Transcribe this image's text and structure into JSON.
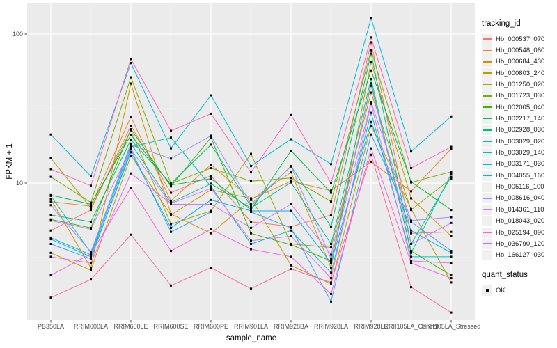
{
  "figure": {
    "background": "#FFFFFF",
    "panel_bg": "#EBEBEB",
    "grid_major_color": "#FFFFFF",
    "grid_minor_color": "#F5F5F5",
    "tick_mark_color": "#333333",
    "tick_label_color": "#4D4D4D",
    "point_color": "#000000"
  },
  "axes": {
    "x_title": "sample_name",
    "y_title": "FPKM + 1",
    "y_ticks": [
      {
        "label": "100",
        "value": 100
      },
      {
        "label": "10",
        "value": 10
      }
    ]
  },
  "legend": {
    "tracking_title": "tracking_id",
    "quant_title": "quant_status",
    "quant_items": [
      {
        "label": "OK",
        "marker": "black-square"
      }
    ]
  },
  "chart_data": {
    "type": "line",
    "title": "",
    "xlabel": "sample_name",
    "ylabel": "FPKM + 1",
    "y_scale": "log10",
    "ylim": [
      1.2,
      160
    ],
    "y_major_breaks": [
      10,
      100
    ],
    "y_minor_breaks": [
      3.162,
      31.62
    ],
    "grid": true,
    "legend_position": "right",
    "marker": "filled-black-square",
    "categories": [
      "PB350LA",
      "RRIM600LA",
      "RRIM600LE",
      "RRIM600SE",
      "RRIM600PE",
      "RRIM901LA",
      "RRIM928BA",
      "RRIM928LA",
      "RRIM928LE",
      "RRII105LA_Control",
      "RRII105LA_Stressed"
    ],
    "series": [
      {
        "name": "Hb_000537_070",
        "color": "#F8766D",
        "values": [
          4.8,
          6.6,
          24.3,
          8.6,
          11.2,
          5.5,
          5.1,
          6.1,
          88,
          4.6,
          4.7
        ]
      },
      {
        "name": "Hb_000548_060",
        "color": "#EA8331",
        "values": [
          7.5,
          7.0,
          27.8,
          7.6,
          13.3,
          7.8,
          10.3,
          8.9,
          13.9,
          8.8,
          17.0
        ]
      },
      {
        "name": "Hb_000684_430",
        "color": "#D89000",
        "values": [
          7.8,
          2.7,
          46.6,
          6.2,
          4.6,
          7.7,
          11.8,
          2.7,
          65,
          7.9,
          4.4
        ]
      },
      {
        "name": "Hb_000803_240",
        "color": "#C09B00",
        "values": [
          3.4,
          2.6,
          15.3,
          6.1,
          9.0,
          7.9,
          2.8,
          2.1,
          24.3,
          6.7,
          2.15
        ]
      },
      {
        "name": "Hb_001250_020",
        "color": "#A3A500",
        "values": [
          14.7,
          6.8,
          22.6,
          5.3,
          6.5,
          15.7,
          3.9,
          3.7,
          40.5,
          6.6,
          10.7
        ]
      },
      {
        "name": "Hb_001723_030",
        "color": "#7CAE00",
        "values": [
          11.0,
          7.4,
          51.3,
          9.9,
          12.6,
          10.3,
          10.8,
          7.5,
          78,
          10.1,
          11.9
        ]
      },
      {
        "name": "Hb_002005_040",
        "color": "#39B600",
        "values": [
          5.7,
          5.0,
          23.0,
          9.5,
          20.2,
          4.6,
          3.85,
          3.0,
          46.7,
          3.5,
          2.4
        ]
      },
      {
        "name": "Hb_002217_140",
        "color": "#00BB4E",
        "values": [
          8.3,
          7.2,
          21.0,
          9.7,
          10.7,
          6.6,
          16.5,
          8.6,
          57,
          10.2,
          6.6
        ]
      },
      {
        "name": "Hb_002928_030",
        "color": "#00BF7D",
        "values": [
          6.1,
          5.5,
          19.5,
          9.9,
          18.1,
          7.0,
          13.0,
          5.1,
          74,
          3.9,
          11.0
        ]
      },
      {
        "name": "Hb_003029_020",
        "color": "#00C1A3",
        "values": [
          8.2,
          3.4,
          18.4,
          7.4,
          9.9,
          6.8,
          10.1,
          3.9,
          50,
          3.4,
          11.5
        ]
      },
      {
        "name": "Hb_003029_140",
        "color": "#00BFC4",
        "values": [
          4.3,
          3.3,
          17.5,
          20.2,
          9.5,
          3.9,
          4.8,
          2.5,
          29.6,
          3.2,
          3.2
        ]
      },
      {
        "name": "Hb_003171_030",
        "color": "#00BAE0",
        "values": [
          21.2,
          11.1,
          64,
          17.1,
          38.8,
          13.0,
          19.7,
          13.4,
          128,
          16.3,
          28.0
        ]
      },
      {
        "name": "Hb_004055_160",
        "color": "#00B0F6",
        "values": [
          4.2,
          3.2,
          16.1,
          5.0,
          7.7,
          6.5,
          6.5,
          2.9,
          25.7,
          4.8,
          3.4
        ]
      },
      {
        "name": "Hb_005116_100",
        "color": "#35A2FF",
        "values": [
          3.9,
          3.1,
          16.8,
          4.7,
          6.4,
          6.4,
          5.0,
          1.6,
          21.2,
          5.5,
          3.5
        ]
      },
      {
        "name": "Hb_008616_040",
        "color": "#9590FF",
        "values": [
          7.1,
          3.45,
          18.0,
          14.6,
          20.8,
          7.2,
          12.9,
          3.1,
          35,
          5.6,
          5.9
        ]
      },
      {
        "name": "Hb_014361_110",
        "color": "#C77CFF",
        "values": [
          5.6,
          4.9,
          16.9,
          7.2,
          7.2,
          5.0,
          7.2,
          3.3,
          45,
          3.9,
          5.4
        ]
      },
      {
        "name": "Hb_018043_020",
        "color": "#E76BF3",
        "values": [
          3.2,
          2.9,
          11.6,
          7.3,
          9.2,
          4.1,
          4.4,
          2.3,
          34,
          3.0,
          2.9
        ]
      },
      {
        "name": "Hb_025194_090",
        "color": "#FA62DB",
        "values": [
          2.4,
          3.35,
          9.3,
          3.5,
          4.9,
          3.6,
          3.2,
          1.8,
          17.1,
          2.9,
          2.3
        ]
      },
      {
        "name": "Hb_036790_120",
        "color": "#FF62BC",
        "values": [
          12.4,
          9.6,
          68,
          22.4,
          29.2,
          11.8,
          28.6,
          10.0,
          95,
          12.6,
          17.5
        ]
      },
      {
        "name": "Hb_166127_030",
        "color": "#FF6A98",
        "values": [
          1.7,
          2.25,
          4.5,
          2.05,
          2.7,
          1.95,
          2.65,
          2.15,
          15.5,
          2.0,
          1.35
        ]
      }
    ]
  }
}
